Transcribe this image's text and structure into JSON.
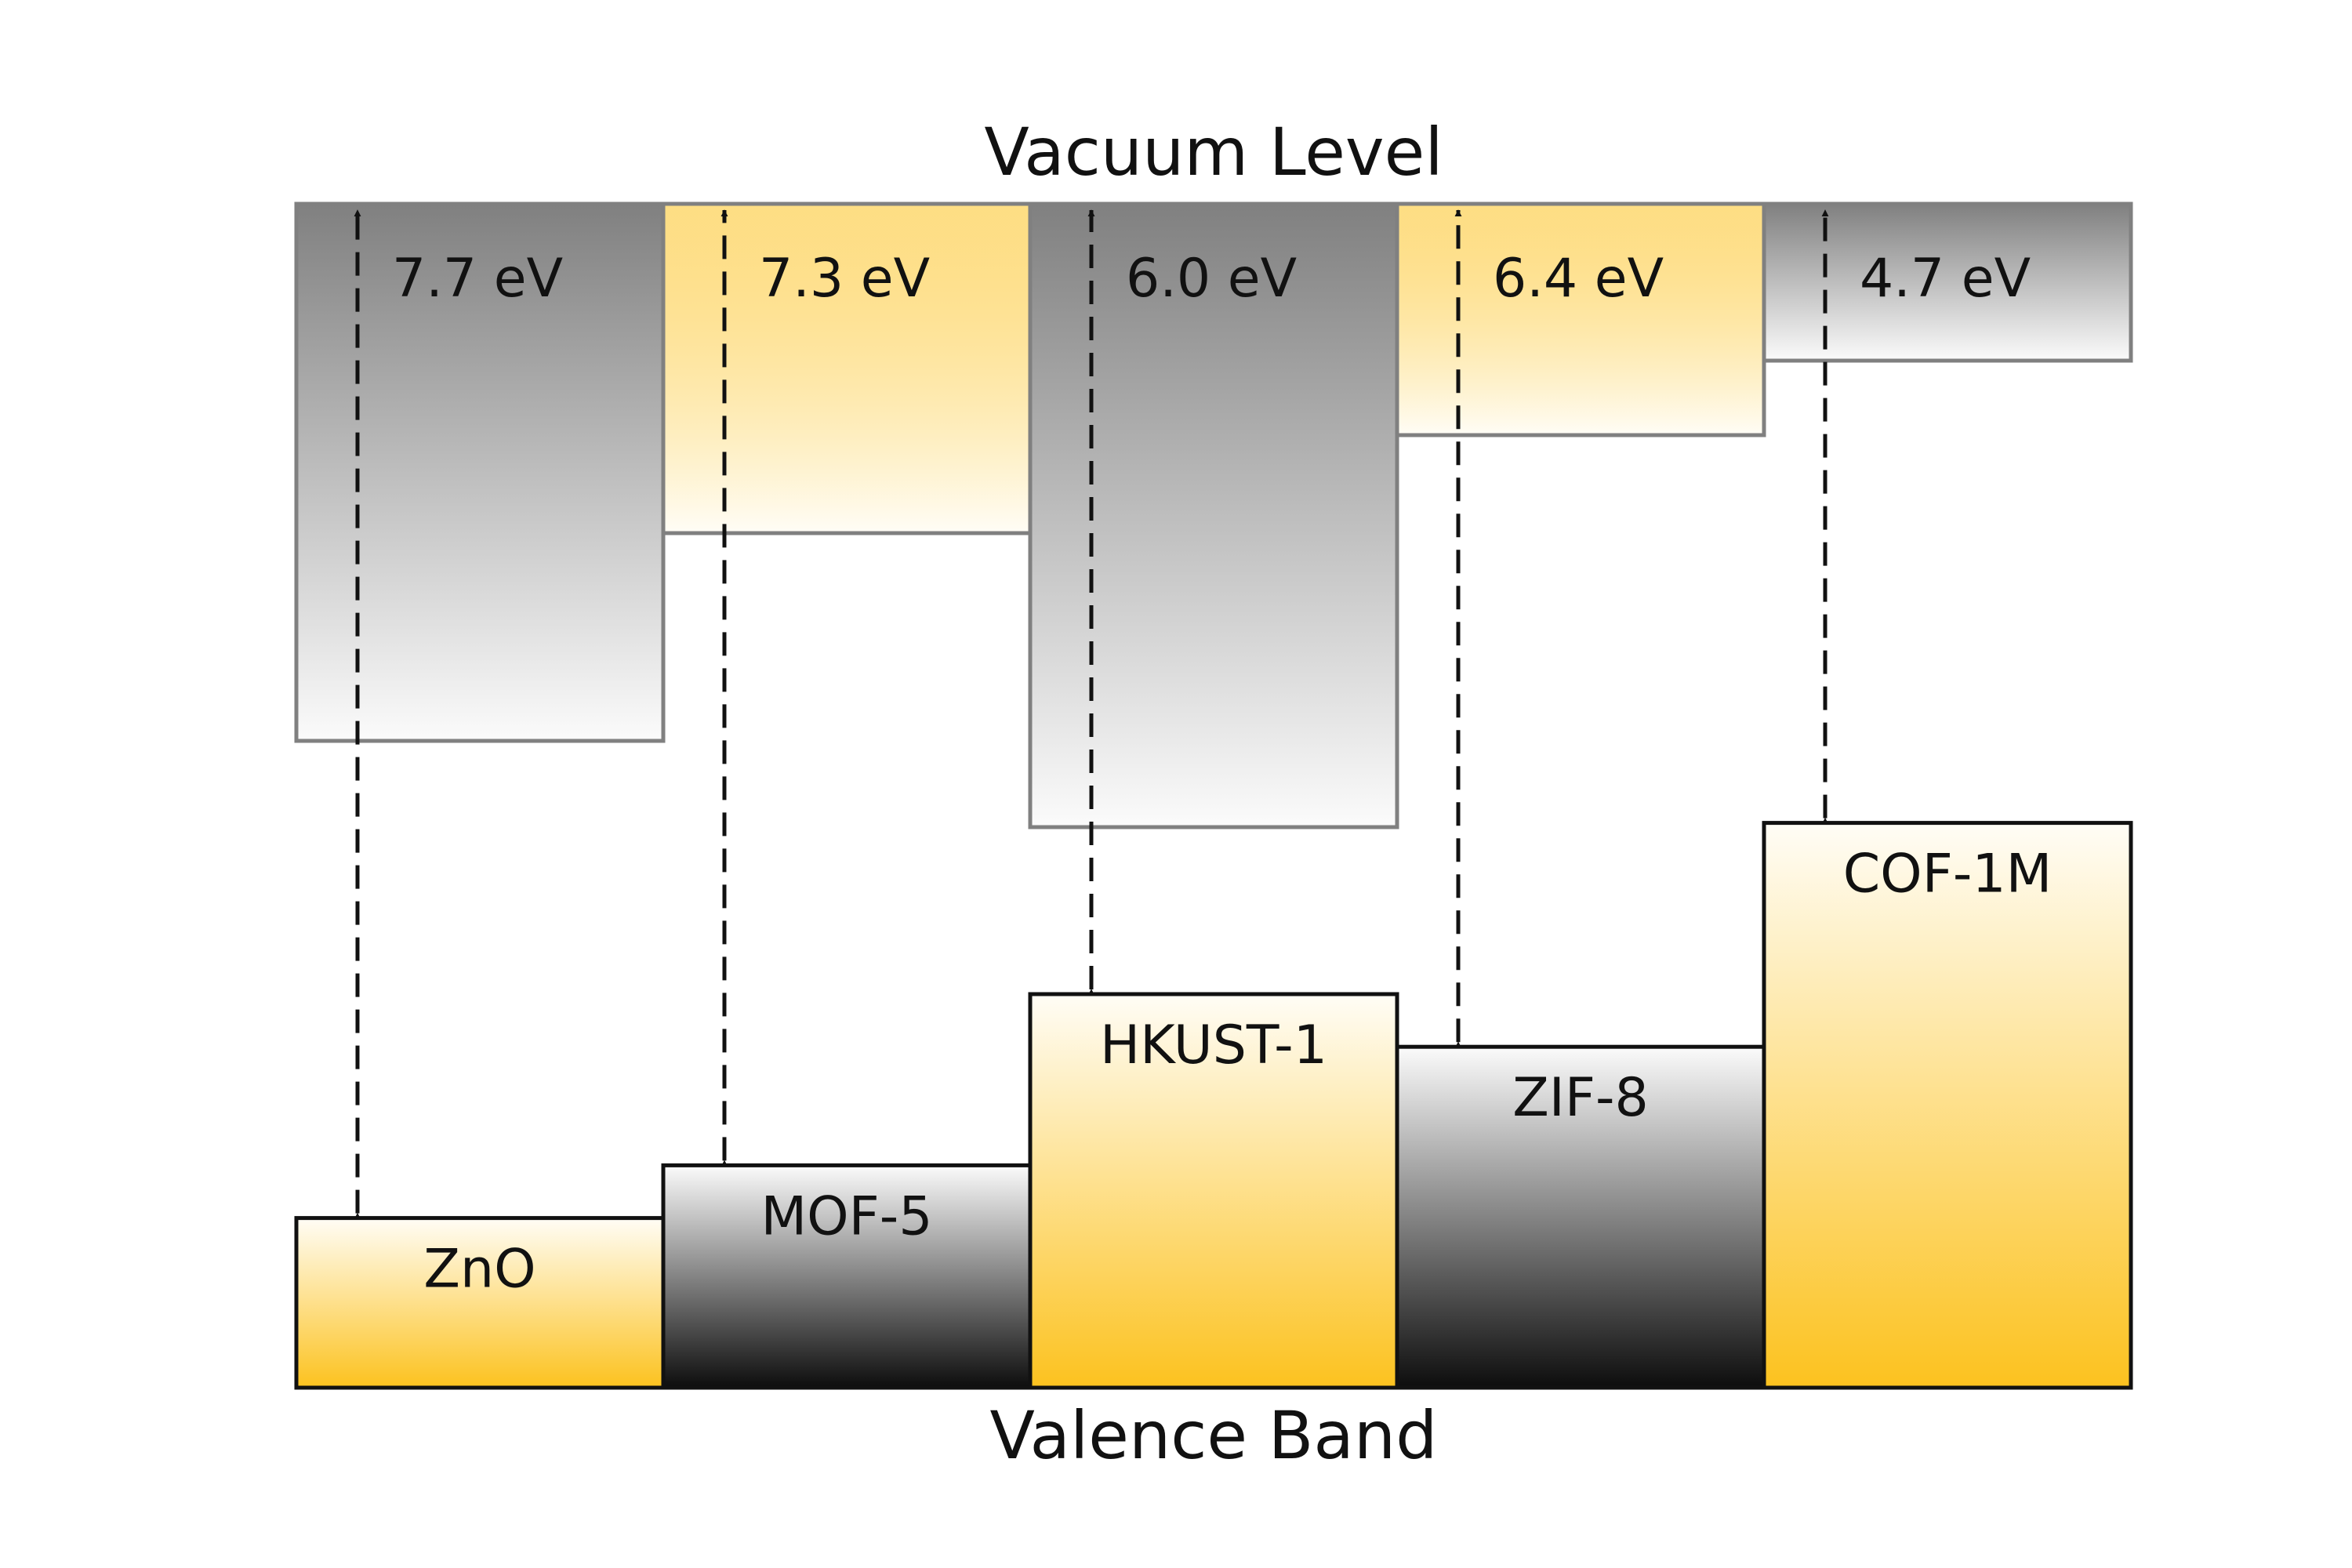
{
  "top_label": "Vacuum Level",
  "bottom_label": "Valence Band",
  "colors": {
    "gray_dark": "#808080",
    "gray_light": "#fbfbfb",
    "gold": "#fcc21f",
    "gold_light": "#fffdf6",
    "black": "#0d0d0d",
    "outline_top": "#808080",
    "outline_bottom": "#111111"
  },
  "materials": [
    {
      "name": "ZnO",
      "gap_label": "7.7 eV",
      "gap": 7.7,
      "top_style": "gray",
      "bottom_style": "gold"
    },
    {
      "name": "MOF-5",
      "gap_label": "7.3 eV",
      "gap": 7.3,
      "top_style": "gold",
      "bottom_style": "black"
    },
    {
      "name": "HKUST-1",
      "gap_label": "6.0 eV",
      "gap": 6.0,
      "top_style": "gray",
      "bottom_style": "gold"
    },
    {
      "name": "ZIF-8",
      "gap_label": "6.4 eV",
      "gap": 6.4,
      "top_style": "gold",
      "bottom_style": "black"
    },
    {
      "name": "COF-1M",
      "gap_label": "4.7 eV",
      "gap": 4.7,
      "top_style": "gray",
      "bottom_style": "gold"
    }
  ]
}
